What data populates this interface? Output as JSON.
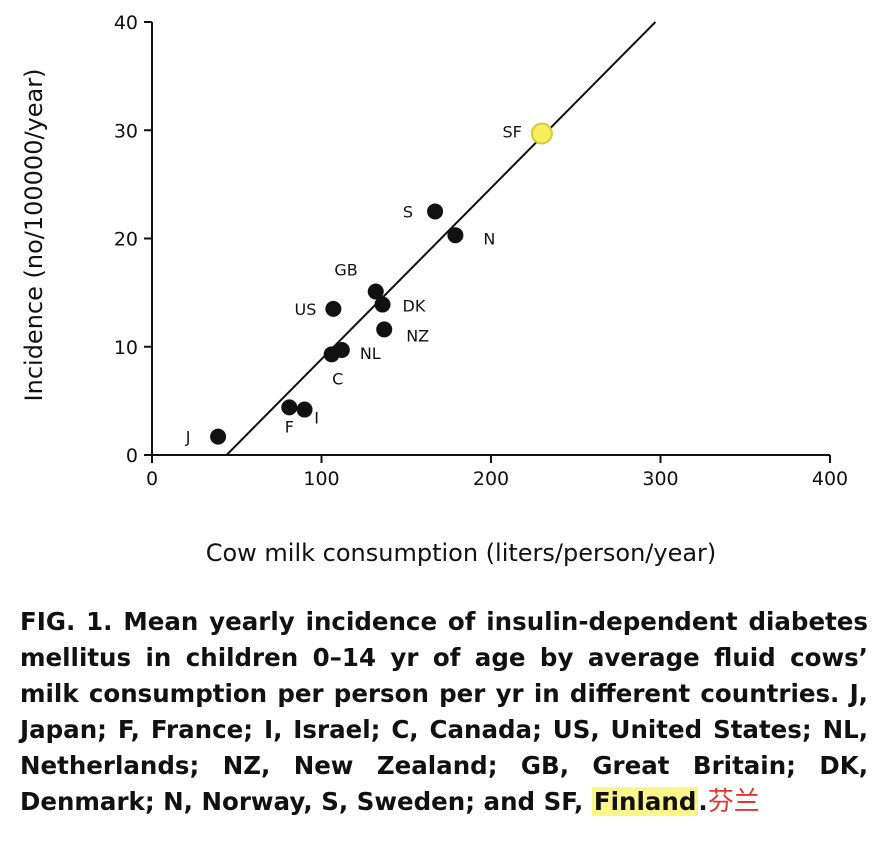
{
  "chart_data": {
    "type": "scatter",
    "xlabel": "Cow milk consumption (liters/person/year)",
    "ylabel": "Incidence (no/100000/year)",
    "xlim": [
      0,
      400
    ],
    "ylim": [
      0,
      40
    ],
    "x_ticks": [
      "0",
      "100",
      "200",
      "300",
      "400"
    ],
    "y_ticks": [
      "0",
      "10",
      "20",
      "30",
      "40"
    ],
    "grid": false,
    "points": [
      {
        "label": "J",
        "x": 39,
        "y": 1.7
      },
      {
        "label": "F",
        "x": 81,
        "y": 4.4
      },
      {
        "label": "I",
        "x": 90,
        "y": 4.2
      },
      {
        "label": "C",
        "x": 106,
        "y": 9.3
      },
      {
        "label": "NL",
        "x": 112,
        "y": 9.7
      },
      {
        "label": "US",
        "x": 107,
        "y": 13.5
      },
      {
        "label": "GB",
        "x": 132,
        "y": 15.1
      },
      {
        "label": "DK",
        "x": 136,
        "y": 13.9
      },
      {
        "label": "NZ",
        "x": 137,
        "y": 11.6
      },
      {
        "label": "S",
        "x": 167,
        "y": 22.5
      },
      {
        "label": "N",
        "x": 179,
        "y": 20.3
      },
      {
        "label": "SF",
        "x": 230,
        "y": 29.7,
        "highlight": true
      }
    ],
    "highlight_color": "#f4ef5a",
    "point_color": "#111111",
    "regression_line": {
      "x": [
        44,
        297
      ],
      "y": [
        0,
        40
      ]
    }
  },
  "caption": {
    "part1": "FIG. 1. Mean yearly incidence of insulin-dependent diabetes mellitus in children 0–14 yr of age by average fluid cows’ milk consumption per person per yr in different countries. J, Japan; F, France; I, Israel; C, Canada; US, United States; NL, Netherlands; NZ, New Zealand; GB, Great Britain; DK, Denmark; N, Norway, S, Sweden; and SF, ",
    "highlighted": "Finland",
    "period": ".",
    "annotation": "芬兰"
  },
  "colors": {
    "caption_highlight": "#fbf58a",
    "annotation": "#e3342f"
  }
}
